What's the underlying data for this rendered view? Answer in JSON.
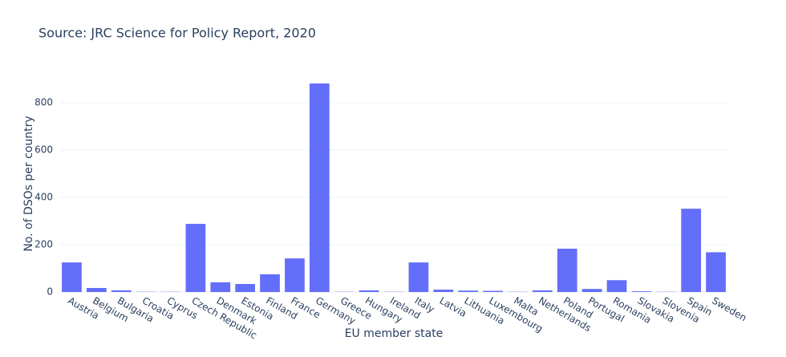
{
  "chart_data": {
    "type": "bar",
    "title": "Source: JRC Science for Policy Report, 2020",
    "x_label": "EU member state",
    "y_label": "No. of DSOs per country",
    "categories": [
      "Austria",
      "Belgium",
      "Bulgaria",
      "Croatia",
      "Cyprus",
      "Czech Republic",
      "Denmark",
      "Estonia",
      "Finland",
      "France",
      "Germany",
      "Greece",
      "Hungary",
      "Ireland",
      "Italy",
      "Latvia",
      "Lithuania",
      "Luxembourg",
      "Malta",
      "Netherlands",
      "Poland",
      "Portugal",
      "Romania",
      "Slovakia",
      "Slovenia",
      "Spain",
      "Sweden"
    ],
    "values": [
      125,
      17,
      7,
      1,
      1,
      288,
      41,
      34,
      75,
      142,
      881,
      1,
      7,
      1,
      125,
      10,
      6,
      5,
      1,
      7,
      183,
      13,
      50,
      3,
      1,
      352,
      168
    ],
    "color": "#636efa",
    "ylim": [
      0,
      927
    ],
    "yticks": [
      0,
      200,
      400,
      600,
      800
    ],
    "grid": true
  }
}
